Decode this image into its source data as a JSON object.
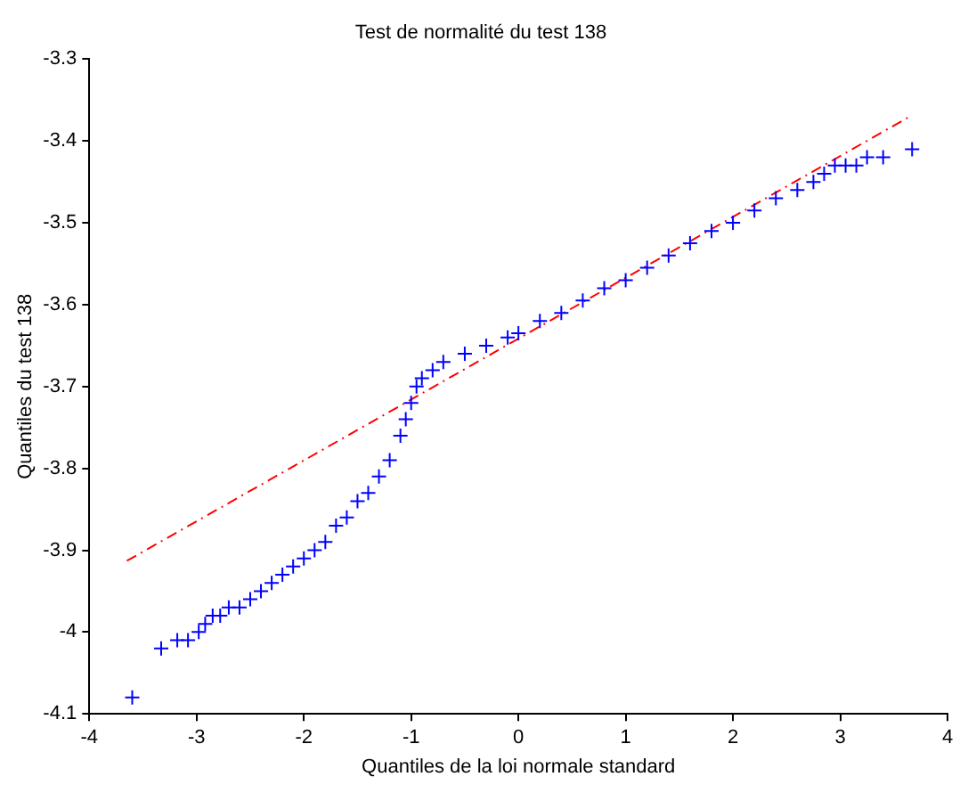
{
  "chart_data": {
    "type": "scatter",
    "title": "Test de normalité du test 138",
    "xlabel": "Quantiles de la loi normale standard",
    "ylabel": "Quantiles du test 138",
    "xlim": [
      -4,
      4
    ],
    "ylim": [
      -4.1,
      -3.3
    ],
    "xticks": [
      -4,
      -3,
      -2,
      -1,
      0,
      1,
      2,
      3,
      4
    ],
    "yticks": [
      -4.1,
      -4,
      -3.9,
      -3.8,
      -3.7,
      -3.6,
      -3.5,
      -3.4,
      -3.3
    ],
    "grid": false,
    "legend": false,
    "series": [
      {
        "type": "scatter",
        "color": "#0000ff",
        "marker": "cross",
        "x": [
          -3.6,
          -3.33,
          -3.18,
          -3.08,
          -2.98,
          -2.92,
          -2.85,
          -2.78,
          -2.7,
          -2.6,
          -2.5,
          -2.4,
          -2.3,
          -2.2,
          -2.1,
          -2.0,
          -1.9,
          -1.8,
          -1.7,
          -1.6,
          -1.5,
          -1.4,
          -1.3,
          -1.2,
          -1.1,
          -1.05,
          -1.0,
          -0.95,
          -0.9,
          -0.8,
          -0.7,
          -0.5,
          -0.3,
          -0.1,
          0,
          0.2,
          0.4,
          0.6,
          0.8,
          1.0,
          1.2,
          1.4,
          1.6,
          1.8,
          2.0,
          2.2,
          2.4,
          2.6,
          2.75,
          2.85,
          2.95,
          3.05,
          3.15,
          3.25,
          3.4,
          3.67
        ],
        "values": [
          -4.08,
          -4.02,
          -4.01,
          -4.01,
          -4.0,
          -3.99,
          -3.98,
          -3.98,
          -3.97,
          -3.97,
          -3.96,
          -3.95,
          -3.94,
          -3.93,
          -3.92,
          -3.91,
          -3.9,
          -3.89,
          -3.87,
          -3.86,
          -3.84,
          -3.83,
          -3.81,
          -3.79,
          -3.76,
          -3.74,
          -3.72,
          -3.7,
          -3.69,
          -3.68,
          -3.67,
          -3.66,
          -3.65,
          -3.64,
          -3.635,
          -3.62,
          -3.61,
          -3.595,
          -3.58,
          -3.57,
          -3.555,
          -3.54,
          -3.525,
          -3.51,
          -3.5,
          -3.485,
          -3.47,
          -3.46,
          -3.45,
          -3.44,
          -3.43,
          -3.43,
          -3.43,
          -3.42,
          -3.42,
          -3.41
        ]
      },
      {
        "type": "line",
        "color": "#ff0000",
        "line_style": "dashdot",
        "marker": "none",
        "x": [
          -3.65,
          3.65
        ],
        "values": [
          -3.913,
          -3.37
        ]
      }
    ]
  }
}
